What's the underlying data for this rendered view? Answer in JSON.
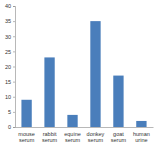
{
  "chart_data": {
    "type": "bar",
    "categories": [
      "mouse serum",
      "rabbit serum",
      "equine serum",
      "donkey serum",
      "goat serum",
      "human urine"
    ],
    "values": [
      9,
      23,
      4,
      35,
      17,
      2
    ],
    "color": "#4a7ebb",
    "ylim": [
      0,
      40
    ],
    "yticks": [
      0,
      5,
      10,
      15,
      20,
      25,
      30,
      35,
      40
    ],
    "grid": false
  }
}
